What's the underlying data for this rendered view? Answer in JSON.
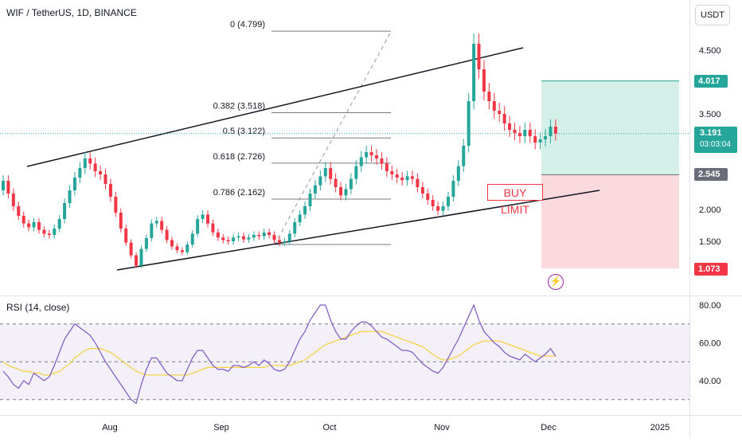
{
  "header": {
    "symbol_title": "WIF / TetherUS, 1D, BINANCE",
    "currency_button": "USDT"
  },
  "rsi": {
    "title": "RSI (14, close)"
  },
  "colors": {
    "up": "#26a69a",
    "down": "#f23645",
    "rsi_line": "#7e57c2",
    "rsi_ma": "#f5d343",
    "target_zone": "#cfeee6",
    "stop_zone": "#f9d6d9"
  },
  "annotations": {
    "buy_limit": "BUY LIMIT",
    "icon": "lightning-icon"
  },
  "price_tags": {
    "target": "4.017",
    "entry": "2.545",
    "stop": "1.073",
    "current_price": "3.191",
    "countdown": "03:03:04"
  },
  "chart_data": [
    {
      "type": "candlestick",
      "title": "WIF / TetherUS, 1D, BINANCE",
      "y_axis_ticks": [
        "4.500",
        "3.500",
        "2.000",
        "1.500"
      ],
      "x_axis_ticks": [
        "Aug",
        "Sep",
        "Oct",
        "Nov",
        "Dec",
        "2025"
      ],
      "fibonacci_levels": [
        {
          "label": "0 (4.799)",
          "value": 4.799
        },
        {
          "label": "0.382 (3.518)",
          "value": 3.518
        },
        {
          "label": "0.5 (3.122)",
          "value": 3.122
        },
        {
          "label": "0.618 (2.726)",
          "value": 2.726
        },
        {
          "label": "0.786 (2.162)",
          "value": 2.162
        }
      ],
      "position": {
        "target": 4.017,
        "entry": 2.545,
        "stop": 1.073
      },
      "current_price": 3.191,
      "close_series": [
        2.45,
        2.25,
        2.05,
        1.9,
        1.78,
        1.72,
        1.8,
        1.68,
        1.62,
        1.6,
        1.7,
        1.85,
        2.1,
        2.3,
        2.5,
        2.65,
        2.8,
        2.72,
        2.6,
        2.55,
        2.4,
        2.2,
        1.95,
        1.7,
        1.48,
        1.28,
        1.12,
        1.38,
        1.55,
        1.78,
        1.82,
        1.68,
        1.52,
        1.42,
        1.36,
        1.33,
        1.45,
        1.62,
        1.85,
        1.92,
        1.78,
        1.64,
        1.56,
        1.52,
        1.5,
        1.56,
        1.58,
        1.53,
        1.56,
        1.6,
        1.58,
        1.64,
        1.6,
        1.52,
        1.48,
        1.5,
        1.62,
        1.8,
        1.92,
        2.05,
        2.25,
        2.38,
        2.52,
        2.65,
        2.48,
        2.35,
        2.22,
        2.32,
        2.48,
        2.68,
        2.82,
        2.9,
        2.85,
        2.8,
        2.72,
        2.6,
        2.55,
        2.5,
        2.46,
        2.52,
        2.48,
        2.35,
        2.25,
        2.15,
        2.05,
        1.98,
        2.05,
        2.2,
        2.45,
        2.68,
        3.0,
        3.7,
        4.6,
        4.2,
        3.85,
        3.7,
        3.55,
        3.5,
        3.35,
        3.25,
        3.2,
        3.15,
        3.25,
        3.15,
        3.05,
        3.1,
        3.15,
        3.3,
        3.191
      ],
      "rsi_axis_ticks": [
        "80.00",
        "60.00",
        "40.00"
      ],
      "rsi_bands": {
        "upper": 70,
        "middle": 50,
        "lower": 30
      },
      "rsi_values": [
        45,
        42,
        38,
        36,
        40,
        38,
        44,
        42,
        40,
        42,
        48,
        55,
        62,
        66,
        70,
        68,
        66,
        64,
        60,
        55,
        50,
        46,
        42,
        38,
        34,
        30,
        28,
        38,
        46,
        52,
        52,
        48,
        44,
        42,
        40,
        40,
        46,
        52,
        56,
        56,
        52,
        48,
        46,
        46,
        45,
        48,
        48,
        47,
        48,
        50,
        48,
        51,
        49,
        46,
        45,
        46,
        50,
        56,
        62,
        66,
        72,
        76,
        80,
        80,
        72,
        66,
        62,
        62,
        66,
        69,
        71,
        71,
        69,
        66,
        63,
        62,
        60,
        58,
        56,
        56,
        55,
        52,
        49,
        47,
        45,
        44,
        47,
        52,
        57,
        62,
        68,
        74,
        80,
        72,
        66,
        63,
        60,
        58,
        55,
        53,
        52,
        51,
        54,
        52,
        50,
        52,
        54,
        57,
        53
      ],
      "rsi_ma_values": [
        50,
        48,
        47,
        46,
        45,
        45,
        44,
        44,
        43,
        43,
        44,
        45,
        47,
        49,
        52,
        54,
        56,
        57,
        57,
        57,
        56,
        55,
        53,
        51,
        49,
        47,
        45,
        44,
        43,
        43,
        43,
        43,
        43,
        43,
        43,
        43,
        43,
        44,
        45,
        46,
        47,
        47,
        47,
        47,
        47,
        47,
        47,
        47,
        47,
        47,
        47,
        47,
        48,
        48,
        48,
        48,
        48,
        49,
        50,
        51,
        53,
        55,
        57,
        59,
        60,
        61,
        62,
        63,
        64,
        65,
        66,
        66,
        66,
        66,
        66,
        65,
        64,
        63,
        62,
        61,
        60,
        59,
        58,
        56,
        54,
        52,
        51,
        51,
        52,
        53,
        55,
        57,
        59,
        60,
        61,
        61,
        61,
        61,
        60,
        59,
        58,
        57,
        56,
        55,
        54,
        53,
        53,
        53,
        53
      ]
    }
  ]
}
